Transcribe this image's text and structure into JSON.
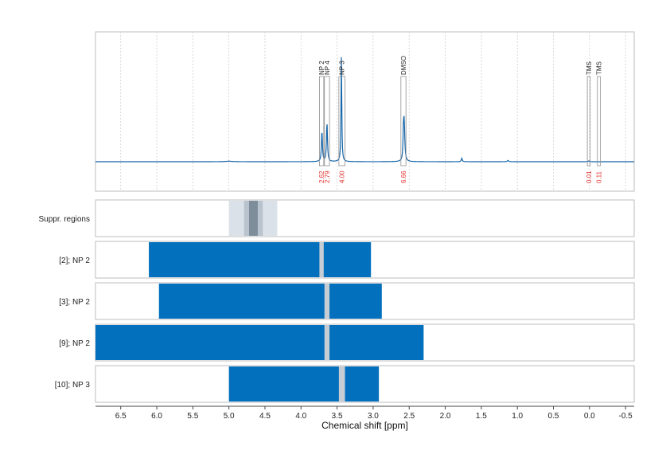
{
  "chart_data": {
    "type": "line",
    "xlabel": "Chemical shift [ppm]",
    "xlim": [
      6.85,
      -0.62
    ],
    "x_reversed": true,
    "x_ticks": [
      6.5,
      6.0,
      5.5,
      5.0,
      4.5,
      4.0,
      3.5,
      3.0,
      2.5,
      2.0,
      1.5,
      1.0,
      0.5,
      0.0,
      -0.5
    ],
    "x_tick_labels": [
      "6.5",
      "6.0",
      "5.5",
      "5.0",
      "4.5",
      "4.0",
      "3.5",
      "3.0",
      "2.5",
      "2.0",
      "1.5",
      "1.0",
      "0.5",
      "0.0",
      "-0.5"
    ],
    "grid": true,
    "spectrum": {
      "color": "#1565a8",
      "peaks": [
        {
          "x": 3.71,
          "height": 0.35,
          "width": 0.008
        },
        {
          "x": 3.64,
          "height": 0.45,
          "width": 0.008
        },
        {
          "x": 3.44,
          "height": 1.2,
          "width": 0.006
        },
        {
          "x": 2.57,
          "height": 0.45,
          "width": 0.01
        },
        {
          "x": 2.58,
          "height": 0.25,
          "width": 0.006
        },
        {
          "x": 1.77,
          "height": 0.04,
          "width": 0.008
        },
        {
          "x": 1.13,
          "height": 0.015,
          "width": 0.01
        },
        {
          "x": 0.01,
          "height": 0.01,
          "width": 0.008
        }
      ]
    },
    "peak_annotations": [
      {
        "label": "NP 2",
        "x_start": 3.745,
        "x_end": 3.685,
        "integral": "2.62"
      },
      {
        "label": "NP 4",
        "x_start": 3.675,
        "x_end": 3.605,
        "integral": "2.79"
      },
      {
        "label": "NP 3",
        "x_start": 3.475,
        "x_end": 3.39,
        "integral": "4.00"
      },
      {
        "label": "DMSO",
        "x_start": 2.615,
        "x_end": 2.545,
        "integral": "6.66"
      },
      {
        "label": "TMS",
        "x_start": 0.03,
        "x_end": -0.01,
        "integral": "0.01"
      },
      {
        "label": "TMS",
        "x_start": -0.11,
        "x_end": -0.15,
        "integral": "0.11"
      }
    ],
    "rows": [
      {
        "label": "Suppr. regions",
        "type": "suppression",
        "bands": [
          {
            "x_start": 5.0,
            "x_end": 4.33,
            "color": "#dbe1e8"
          },
          {
            "x_start": 4.79,
            "x_end": 4.53,
            "color": "#b9c3cd"
          },
          {
            "x_start": 4.72,
            "x_end": 4.6,
            "color": "#7d8d9a"
          }
        ]
      },
      {
        "label": "[2]; NP 2",
        "type": "window",
        "range": [
          6.11,
          3.03
        ],
        "marker": [
          3.745,
          3.685
        ]
      },
      {
        "label": "[3]; NP 2",
        "type": "window",
        "range": [
          5.97,
          2.88
        ],
        "marker": [
          3.675,
          3.605
        ]
      },
      {
        "label": "[9]; NP 2",
        "type": "window",
        "range": [
          6.85,
          2.3
        ],
        "marker": [
          3.675,
          3.605
        ]
      },
      {
        "label": "[10]; NP 3",
        "type": "window",
        "range": [
          5.0,
          2.92
        ],
        "marker": [
          3.475,
          3.39
        ]
      }
    ],
    "window_color": "#0270bd",
    "marker_color": "#c5ccd3"
  }
}
